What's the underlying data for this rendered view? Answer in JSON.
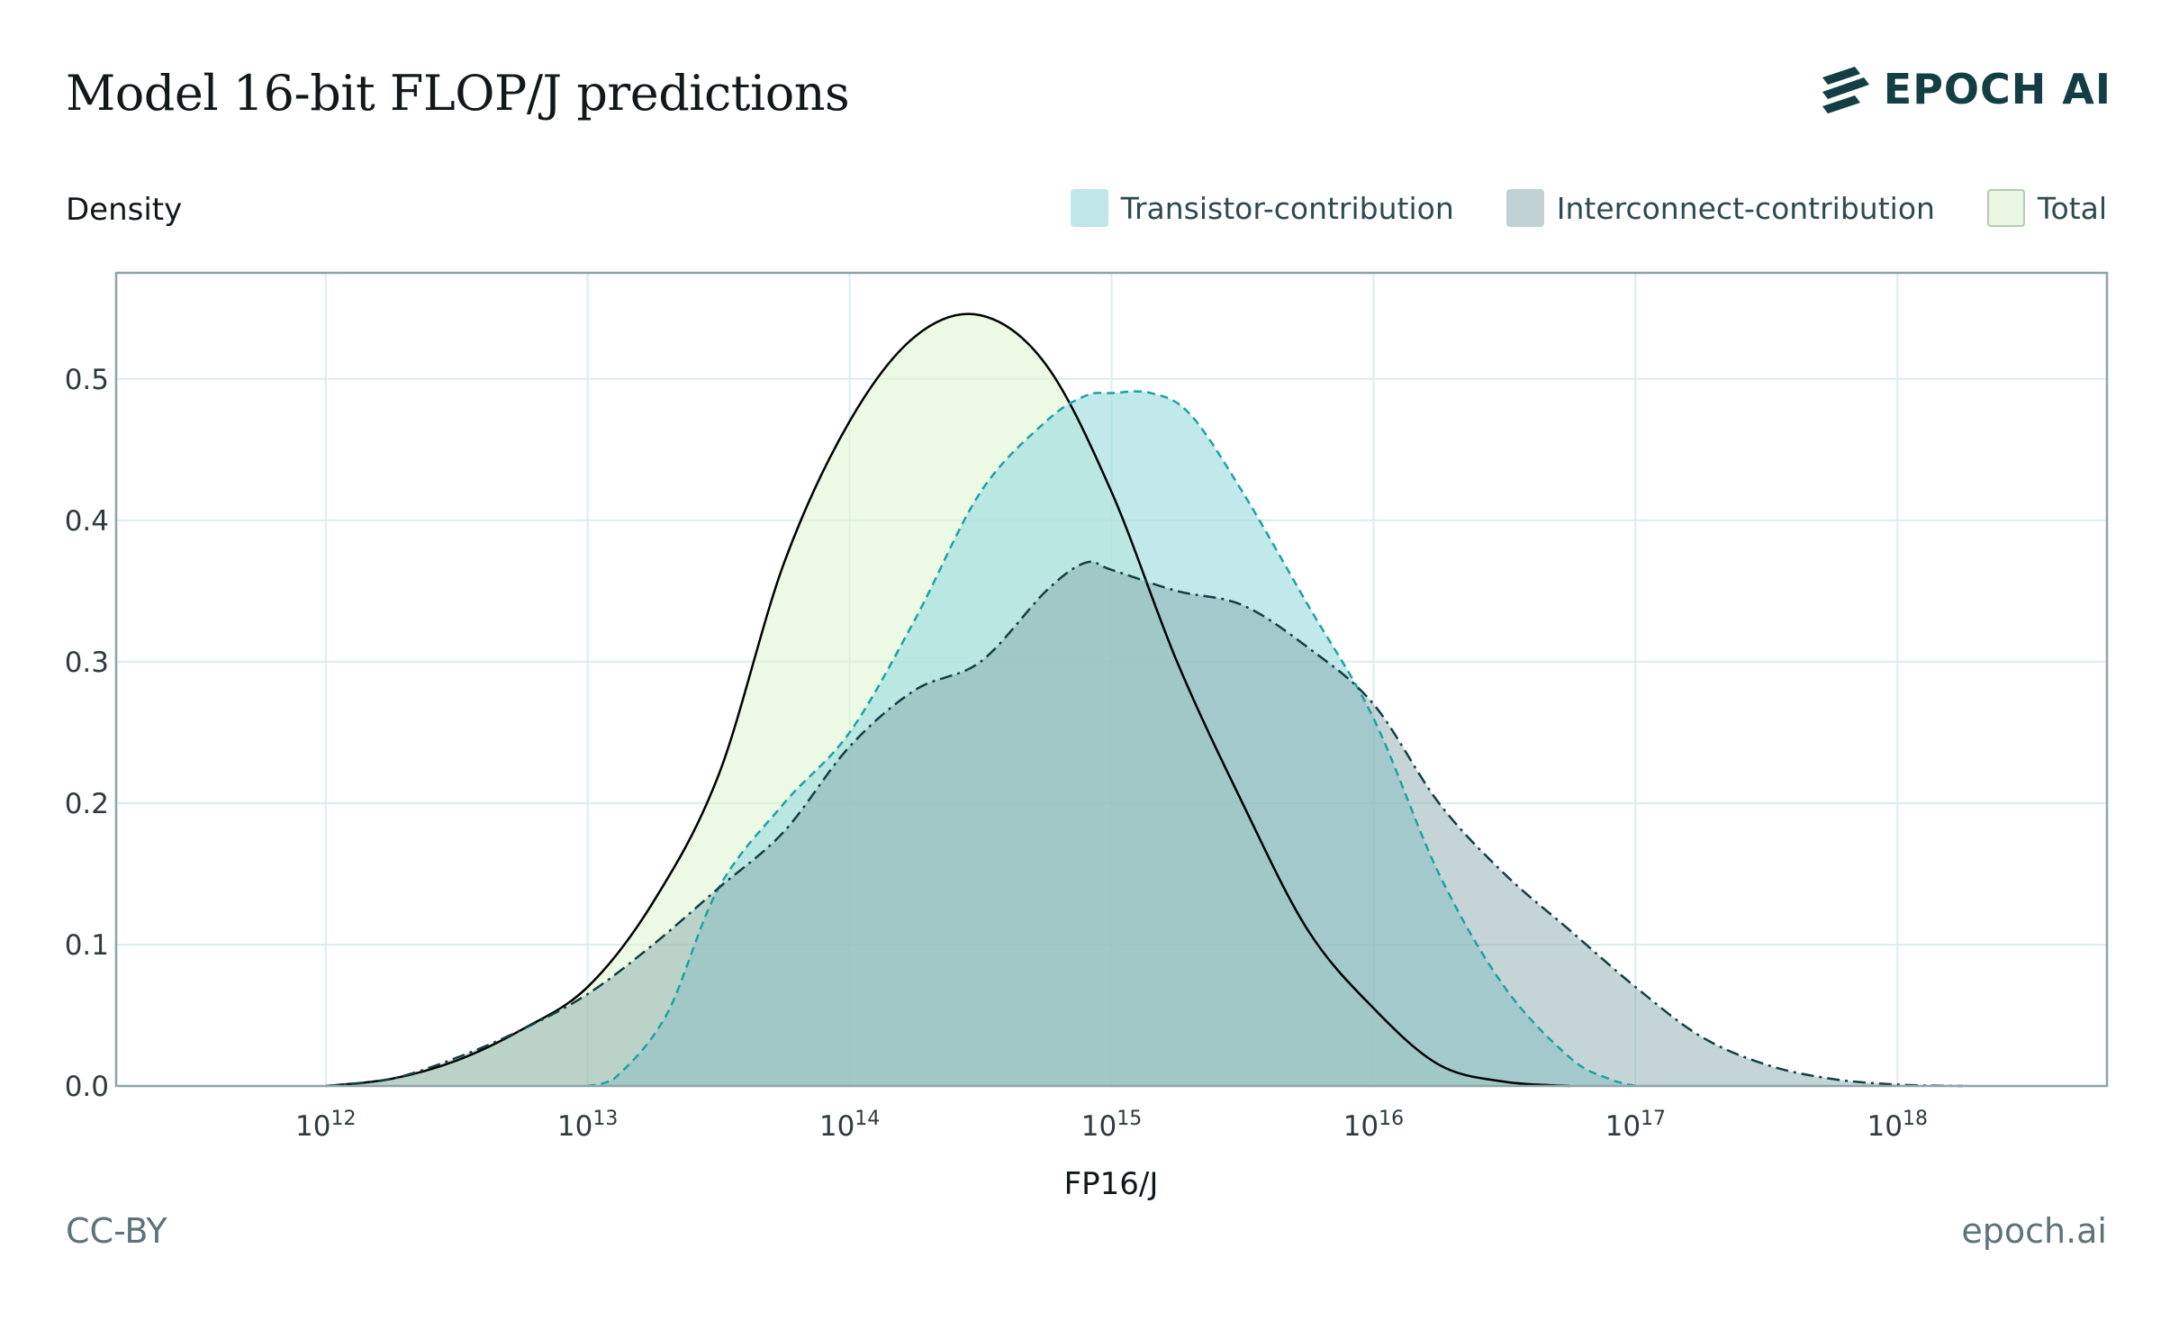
{
  "header": {
    "title": "Model 16-bit FLOP/J predictions",
    "logo_text": "EPOCH AI",
    "logo_icon": "epoch-stripes-icon"
  },
  "footer": {
    "license": "CC-BY",
    "site": "epoch.ai"
  },
  "colors": {
    "transistor_fill": "#9fdde0",
    "transistor_line": "#1aa3a3",
    "interconnect_fill": "#7ea2a6",
    "interconnect_line": "#123e44",
    "total_fill": "#dff5d2",
    "total_line": "#000000",
    "grid": "#dcecec",
    "axis": "#8fa4a8"
  },
  "chart_data": {
    "type": "area",
    "title": "Model 16-bit FLOP/J predictions",
    "xlabel": "FP16/J",
    "ylabel": "Density",
    "x_scale": "log10",
    "xlim_log10": [
      11.2,
      18.8
    ],
    "ylim": [
      0,
      0.575
    ],
    "x_ticks": [
      {
        "base": "10",
        "exp": "12",
        "log10": 12
      },
      {
        "base": "10",
        "exp": "13",
        "log10": 13
      },
      {
        "base": "10",
        "exp": "14",
        "log10": 14
      },
      {
        "base": "10",
        "exp": "15",
        "log10": 15
      },
      {
        "base": "10",
        "exp": "16",
        "log10": 16
      },
      {
        "base": "10",
        "exp": "17",
        "log10": 17
      },
      {
        "base": "10",
        "exp": "18",
        "log10": 18
      }
    ],
    "y_ticks": [
      {
        "value": 0,
        "label": "0.0"
      },
      {
        "value": 0.1,
        "label": "0.1"
      },
      {
        "value": 0.2,
        "label": "0.2"
      },
      {
        "value": 0.3,
        "label": "0.3"
      },
      {
        "value": 0.4,
        "label": "0.4"
      },
      {
        "value": 0.5,
        "label": "0.5"
      }
    ],
    "grid": true,
    "legend_position": "top-right",
    "series": [
      {
        "name": "Transistor-contribution",
        "style": "dashed",
        "x_log10": [
          13.0,
          13.1,
          13.3,
          13.5,
          13.75,
          14.0,
          14.25,
          14.5,
          14.75,
          14.9,
          15.0,
          15.15,
          15.3,
          15.5,
          15.75,
          16.0,
          16.25,
          16.5,
          16.75,
          16.9,
          17.0
        ],
        "values": [
          0.0,
          0.005,
          0.05,
          0.14,
          0.2,
          0.25,
          0.33,
          0.42,
          0.47,
          0.488,
          0.49,
          0.49,
          0.475,
          0.42,
          0.34,
          0.26,
          0.15,
          0.07,
          0.02,
          0.005,
          0.0
        ]
      },
      {
        "name": "Interconnect-contribution",
        "style": "dash-dot",
        "x_log10": [
          12.0,
          12.25,
          12.5,
          12.75,
          13.0,
          13.25,
          13.5,
          13.75,
          14.0,
          14.25,
          14.5,
          14.75,
          14.9,
          15.0,
          15.25,
          15.5,
          15.75,
          16.0,
          16.25,
          16.5,
          16.75,
          17.0,
          17.25,
          17.5,
          17.75,
          18.0,
          18.25
        ],
        "values": [
          0.0,
          0.005,
          0.02,
          0.04,
          0.065,
          0.1,
          0.14,
          0.18,
          0.24,
          0.28,
          0.3,
          0.35,
          0.37,
          0.365,
          0.35,
          0.34,
          0.31,
          0.27,
          0.2,
          0.15,
          0.11,
          0.07,
          0.035,
          0.015,
          0.005,
          0.001,
          0.0
        ]
      },
      {
        "name": "Total",
        "style": "solid",
        "x_log10": [
          12.0,
          12.25,
          12.5,
          12.75,
          13.0,
          13.25,
          13.5,
          13.75,
          14.0,
          14.25,
          14.5,
          14.75,
          15.0,
          15.25,
          15.5,
          15.75,
          16.0,
          16.25,
          16.5,
          16.75
        ],
        "values": [
          0.0,
          0.005,
          0.018,
          0.04,
          0.07,
          0.13,
          0.22,
          0.37,
          0.47,
          0.53,
          0.545,
          0.51,
          0.42,
          0.3,
          0.2,
          0.11,
          0.055,
          0.015,
          0.003,
          0.0
        ]
      }
    ]
  }
}
